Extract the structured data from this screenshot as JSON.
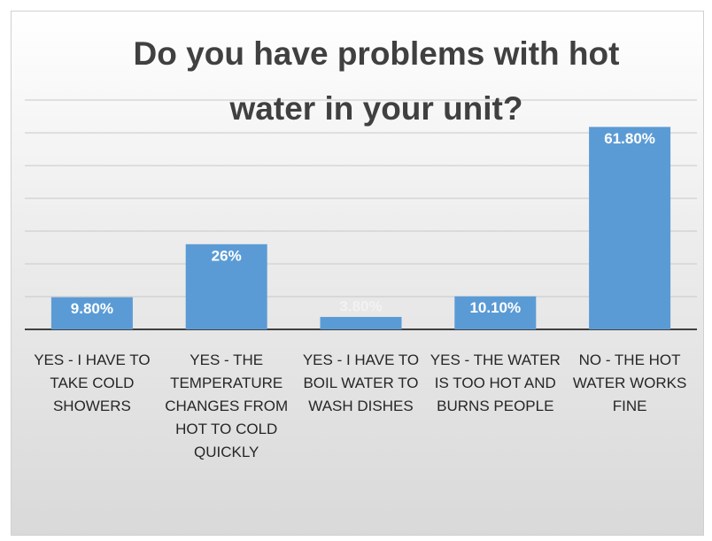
{
  "chart_data": {
    "type": "bar",
    "title": "Do you have problems with hot water in your unit?",
    "categories": [
      "YES - I HAVE TO TAKE COLD SHOWERS",
      "YES - THE TEMPERATURE CHANGES FROM HOT TO COLD QUICKLY",
      "YES - I HAVE TO BOIL WATER TO WASH DISHES",
      "YES - THE WATER IS TOO HOT AND BURNS PEOPLE",
      "NO - THE HOT WATER WORKS FINE"
    ],
    "values": [
      9.8,
      26,
      3.8,
      10.1,
      61.8
    ],
    "value_labels": [
      "9.80%",
      "26%",
      "3.80%",
      "10.10%",
      "61.80%"
    ],
    "color": "#5b9bd5",
    "ylim": [
      0,
      70
    ],
    "yticks": [
      0,
      10,
      20,
      30,
      40,
      50,
      60,
      70
    ],
    "grid": true
  }
}
